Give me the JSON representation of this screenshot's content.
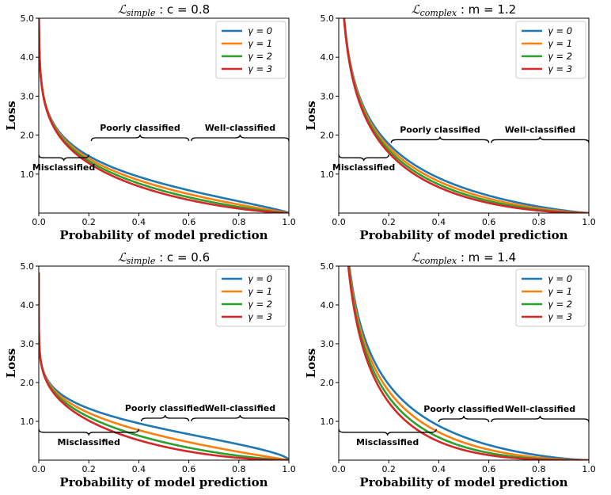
{
  "colors": {
    "gamma0": "#1f77b4",
    "gamma1": "#ff7f0e",
    "gamma2": "#2ca02c",
    "gamma3": "#d62728"
  },
  "chart_data": [
    {
      "type": "line",
      "title": "ℒsimple :  c = 0.8",
      "title_math": "ℒ",
      "title_sub": "simple",
      "title_rest": ":  c = 0.8",
      "loss": "simple",
      "param": 0.8,
      "xlabel": "Probability of model prediction",
      "ylabel": "Loss",
      "xlim": [
        0,
        1
      ],
      "ylim": [
        0,
        5
      ],
      "xticks": [
        "0.0",
        "0.2",
        "0.4",
        "0.6",
        "0.8",
        "1.0"
      ],
      "yticks": [
        "1.0",
        "2.0",
        "3.0",
        "4.0",
        "5.0"
      ],
      "legend_position": "top-right",
      "series": [
        {
          "name": "γ = 0",
          "gamma": 0
        },
        {
          "name": "γ = 1",
          "gamma": 1
        },
        {
          "name": "γ = 2",
          "gamma": 2
        },
        {
          "name": "γ = 3",
          "gamma": 3
        }
      ],
      "annotations": [
        {
          "text": "Misclassified",
          "x0": 0.0,
          "x1": 0.2,
          "y": 1.5,
          "side": "below"
        },
        {
          "text": "Poorly classified",
          "x0": 0.21,
          "x1": 0.6,
          "y": 1.85,
          "side": "above"
        },
        {
          "text": "Well-classified",
          "x0": 0.61,
          "x1": 1.0,
          "y": 1.85,
          "side": "above"
        }
      ]
    },
    {
      "type": "line",
      "title": "ℒcomplex :  m = 1.2",
      "title_math": "ℒ",
      "title_sub": "complex",
      "title_rest": ":  m = 1.2",
      "loss": "complex",
      "param": 1.2,
      "xlabel": "Probability of model prediction",
      "ylabel": "Loss",
      "xlim": [
        0,
        1
      ],
      "ylim": [
        0,
        5
      ],
      "xticks": [
        "0.0",
        "0.2",
        "0.4",
        "0.6",
        "0.8",
        "1.0"
      ],
      "yticks": [
        "1.0",
        "2.0",
        "3.0",
        "4.0",
        "5.0"
      ],
      "legend_position": "top-right",
      "series": [
        {
          "name": "γ = 0",
          "gamma": 0
        },
        {
          "name": "γ = 1",
          "gamma": 1
        },
        {
          "name": "γ = 2",
          "gamma": 2
        },
        {
          "name": "γ = 3",
          "gamma": 3
        }
      ],
      "annotations": [
        {
          "text": "Misclassified",
          "x0": 0.0,
          "x1": 0.2,
          "y": 1.5,
          "side": "below"
        },
        {
          "text": "Poorly classified",
          "x0": 0.21,
          "x1": 0.6,
          "y": 1.8,
          "side": "above"
        },
        {
          "text": "Well-classified",
          "x0": 0.61,
          "x1": 1.0,
          "y": 1.8,
          "side": "above"
        }
      ]
    },
    {
      "type": "line",
      "title": "ℒsimple :  c = 0.6",
      "title_math": "ℒ",
      "title_sub": "simple",
      "title_rest": ":  c = 0.6",
      "loss": "simple",
      "param": 0.6,
      "xlabel": "Probability of model prediction",
      "ylabel": "Loss",
      "xlim": [
        0,
        1
      ],
      "ylim": [
        0,
        5
      ],
      "xticks": [
        "0.0",
        "0.2",
        "0.4",
        "0.6",
        "0.8",
        "1.0"
      ],
      "yticks": [
        "1.0",
        "2.0",
        "3.0",
        "4.0",
        "5.0"
      ],
      "legend_position": "top-right",
      "series": [
        {
          "name": "γ = 0",
          "gamma": 0
        },
        {
          "name": "γ = 1",
          "gamma": 1
        },
        {
          "name": "γ = 2",
          "gamma": 2
        },
        {
          "name": "γ = 3",
          "gamma": 3
        }
      ],
      "annotations": [
        {
          "text": "Misclassified",
          "x0": 0.0,
          "x1": 0.4,
          "y": 0.8,
          "side": "below"
        },
        {
          "text": "Poorly classified",
          "x0": 0.41,
          "x1": 0.6,
          "y": 1.0,
          "side": "above"
        },
        {
          "text": "Well-classified",
          "x0": 0.61,
          "x1": 1.0,
          "y": 1.0,
          "side": "above"
        }
      ]
    },
    {
      "type": "line",
      "title": "ℒcomplex :  m = 1.4",
      "title_math": "ℒ",
      "title_sub": "complex",
      "title_rest": ":  m = 1.4",
      "loss": "complex",
      "param": 1.4,
      "xlabel": "Probability of model prediction",
      "ylabel": "Loss",
      "xlim": [
        0,
        1
      ],
      "ylim": [
        0,
        5
      ],
      "xticks": [
        "0.0",
        "0.2",
        "0.4",
        "0.6",
        "0.8",
        "1.0"
      ],
      "yticks": [
        "1.0",
        "2.0",
        "3.0",
        "4.0",
        "5.0"
      ],
      "legend_position": "top-right",
      "series": [
        {
          "name": "γ = 0",
          "gamma": 0
        },
        {
          "name": "γ = 1",
          "gamma": 1
        },
        {
          "name": "γ = 2",
          "gamma": 2
        },
        {
          "name": "γ = 3",
          "gamma": 3
        }
      ],
      "annotations": [
        {
          "text": "Misclassified",
          "x0": 0.0,
          "x1": 0.39,
          "y": 0.8,
          "side": "below"
        },
        {
          "text": "Poorly classified",
          "x0": 0.4,
          "x1": 0.6,
          "y": 0.98,
          "side": "above"
        },
        {
          "text": "Well-classified",
          "x0": 0.61,
          "x1": 1.0,
          "y": 0.98,
          "side": "above"
        }
      ]
    }
  ]
}
